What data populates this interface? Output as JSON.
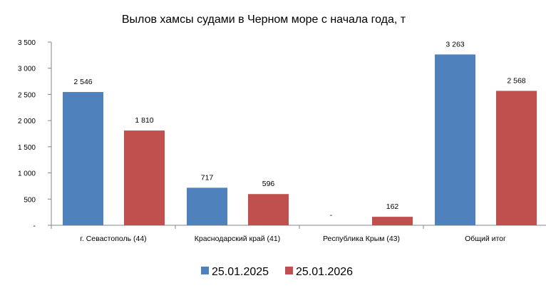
{
  "chart_data": {
    "type": "bar",
    "title": "Вылов хамсы судами в Черном море с начала  года, т",
    "categories": [
      "г. Севастополь (44)",
      "Краснодарский край (41)",
      "Республика Крым (43)",
      "Общий итог"
    ],
    "series": [
      {
        "name": "25.01.2025",
        "color": "#4F81BD",
        "values": [
          2546,
          717,
          0,
          3263
        ],
        "labels": [
          "2 546",
          "717",
          "-",
          "3 263"
        ]
      },
      {
        "name": "25.01.2026",
        "color": "#C0504D",
        "values": [
          1810,
          596,
          162,
          2568
        ],
        "labels": [
          "1 810",
          "596",
          "162",
          "2 568"
        ]
      }
    ],
    "ylim": [
      0,
      3500
    ],
    "yticks": [
      0,
      500,
      1000,
      1500,
      2000,
      2500,
      3000,
      3500
    ],
    "ytick_labels": [
      "-",
      "500",
      "1 000",
      "1 500",
      "2 000",
      "2 500",
      "3 000",
      "3 500"
    ],
    "xlabel": "",
    "ylabel": "",
    "grid": false,
    "legend": "bottom"
  }
}
